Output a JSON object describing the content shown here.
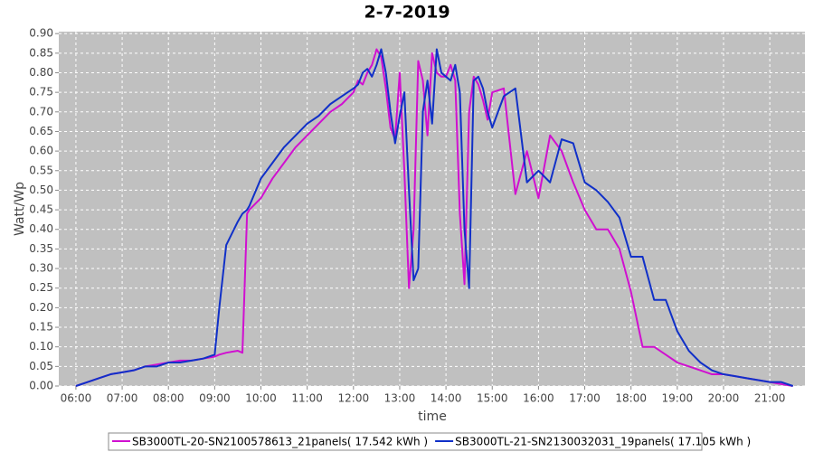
{
  "chart_data": {
    "type": "line",
    "title": "2-7-2019",
    "x_label": "time",
    "y_label": "Watt/Wp",
    "x": [
      6,
      6.25,
      6.5,
      6.75,
      7,
      7.25,
      7.5,
      7.75,
      8,
      8.25,
      8.5,
      8.75,
      9,
      9.1,
      9.25,
      9.5,
      9.6,
      9.7,
      9.75,
      10,
      10.25,
      10.5,
      10.75,
      11,
      11.25,
      11.5,
      11.75,
      12,
      12.1,
      12.2,
      12.3,
      12.4,
      12.5,
      12.6,
      12.7,
      12.8,
      12.9,
      13,
      13.1,
      13.2,
      13.3,
      13.4,
      13.5,
      13.6,
      13.7,
      13.8,
      13.9,
      14,
      14.1,
      14.2,
      14.3,
      14.4,
      14.5,
      14.6,
      14.7,
      14.8,
      14.9,
      15,
      15.25,
      15.5,
      15.75,
      16,
      16.25,
      16.5,
      16.75,
      17,
      17.25,
      17.5,
      17.75,
      18,
      18.25,
      18.5,
      18.75,
      19,
      19.25,
      19.5,
      19.75,
      20,
      20.25,
      20.5,
      20.75,
      21,
      21.25,
      21.5
    ],
    "series": [
      {
        "name": "SB3000TL-20-SN2100578613_21panels( 17.542 kWh )",
        "color": "#d010d0",
        "values": [
          0,
          0.01,
          0.02,
          0.03,
          0.035,
          0.04,
          0.05,
          0.055,
          0.06,
          0.065,
          0.065,
          0.07,
          0.075,
          0.08,
          0.085,
          0.09,
          0.085,
          0.44,
          0.45,
          0.48,
          0.53,
          0.57,
          0.61,
          0.64,
          0.67,
          0.7,
          0.72,
          0.75,
          0.78,
          0.77,
          0.8,
          0.82,
          0.86,
          0.84,
          0.76,
          0.66,
          0.63,
          0.8,
          0.55,
          0.25,
          0.4,
          0.83,
          0.78,
          0.64,
          0.85,
          0.8,
          0.79,
          0.79,
          0.82,
          0.78,
          0.44,
          0.26,
          0.7,
          0.79,
          0.77,
          0.73,
          0.68,
          0.75,
          0.76,
          0.49,
          0.6,
          0.48,
          0.64,
          0.6,
          0.52,
          0.45,
          0.4,
          0.4,
          0.35,
          0.24,
          0.1,
          0.1,
          0.08,
          0.06,
          0.05,
          0.04,
          0.03,
          0.03,
          0.025,
          0.02,
          0.015,
          0.01,
          0.005,
          0
        ]
      },
      {
        "name": "SB3000TL-21-SN2130032031_19panels( 17.105 kWh )",
        "color": "#1030c8",
        "values": [
          0,
          0.01,
          0.02,
          0.03,
          0.035,
          0.04,
          0.05,
          0.05,
          0.06,
          0.06,
          0.065,
          0.07,
          0.08,
          0.2,
          0.36,
          0.42,
          0.44,
          0.45,
          0.46,
          0.53,
          0.57,
          0.61,
          0.64,
          0.67,
          0.69,
          0.72,
          0.74,
          0.76,
          0.77,
          0.8,
          0.81,
          0.79,
          0.82,
          0.86,
          0.8,
          0.7,
          0.62,
          0.69,
          0.75,
          0.5,
          0.27,
          0.3,
          0.7,
          0.78,
          0.67,
          0.86,
          0.8,
          0.79,
          0.78,
          0.82,
          0.75,
          0.4,
          0.25,
          0.78,
          0.79,
          0.76,
          0.7,
          0.66,
          0.74,
          0.76,
          0.52,
          0.55,
          0.52,
          0.63,
          0.62,
          0.52,
          0.5,
          0.47,
          0.43,
          0.33,
          0.33,
          0.22,
          0.22,
          0.14,
          0.09,
          0.06,
          0.04,
          0.03,
          0.025,
          0.02,
          0.015,
          0.01,
          0.01,
          0
        ]
      }
    ],
    "xlim": [
      5.63,
      21.76
    ],
    "xticks": [
      {
        "value": 6,
        "label": "06:00"
      },
      {
        "value": 7,
        "label": "07:00"
      },
      {
        "value": 8,
        "label": "08:00"
      },
      {
        "value": 9,
        "label": "09:00"
      },
      {
        "value": 10,
        "label": "10:00"
      },
      {
        "value": 11,
        "label": "11:00"
      },
      {
        "value": 12,
        "label": "12:00"
      },
      {
        "value": 13,
        "label": "13:00"
      },
      {
        "value": 14,
        "label": "14:00"
      },
      {
        "value": 15,
        "label": "15:00"
      },
      {
        "value": 16,
        "label": "16:00"
      },
      {
        "value": 17,
        "label": "17:00"
      },
      {
        "value": 18,
        "label": "18:00"
      },
      {
        "value": 19,
        "label": "19:00"
      },
      {
        "value": 20,
        "label": "20:00"
      },
      {
        "value": 21,
        "label": "21:00"
      }
    ],
    "ylim": [
      0,
      0.905
    ],
    "yticks": [
      {
        "value": 0,
        "label": "0.00"
      },
      {
        "value": 0.05,
        "label": "0.05"
      },
      {
        "value": 0.1,
        "label": "0.10"
      },
      {
        "value": 0.15,
        "label": "0.15"
      },
      {
        "value": 0.2,
        "label": "0.20"
      },
      {
        "value": 0.25,
        "label": "0.25"
      },
      {
        "value": 0.3,
        "label": "0.30"
      },
      {
        "value": 0.35,
        "label": "0.35"
      },
      {
        "value": 0.4,
        "label": "0.40"
      },
      {
        "value": 0.45,
        "label": "0.45"
      },
      {
        "value": 0.5,
        "label": "0.50"
      },
      {
        "value": 0.55,
        "label": "0.55"
      },
      {
        "value": 0.6,
        "label": "0.60"
      },
      {
        "value": 0.65,
        "label": "0.65"
      },
      {
        "value": 0.7,
        "label": "0.70"
      },
      {
        "value": 0.75,
        "label": "0.75"
      },
      {
        "value": 0.8,
        "label": "0.80"
      },
      {
        "value": 0.85,
        "label": "0.85"
      },
      {
        "value": 0.9,
        "label": "0.90"
      }
    ],
    "grid": true
  }
}
